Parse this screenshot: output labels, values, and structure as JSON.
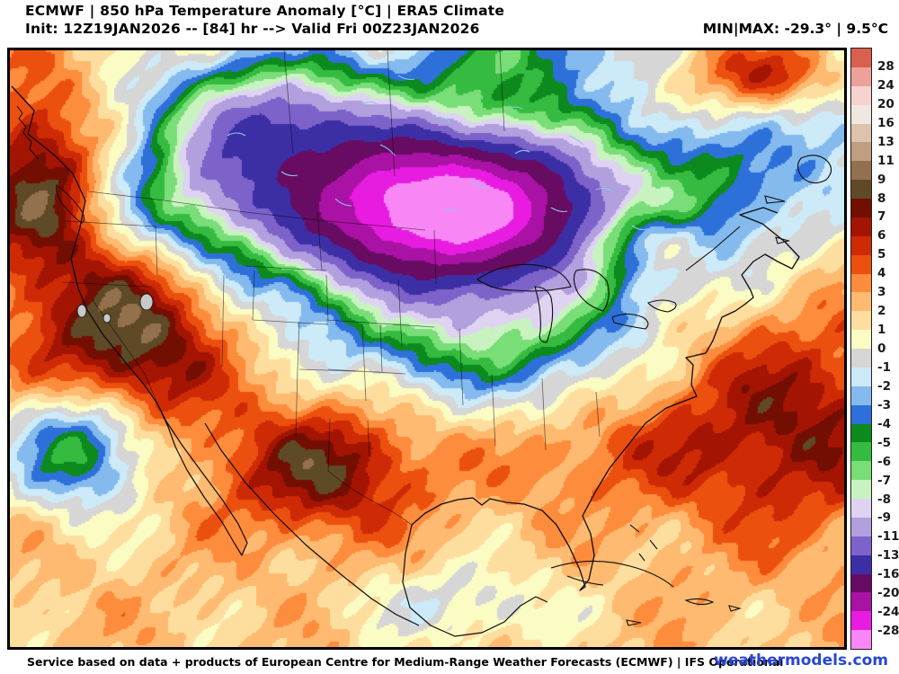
{
  "header": {
    "title_line1": "ECMWF | 850 hPa Temperature Anomaly [°C] | ERA5 Climate",
    "title_line2": "Init: 12Z19JAN2026 -- [84] hr --> Valid Fri 00Z23JAN2026",
    "minmax_label": "MIN|MAX: -29.3° | 9.5°C"
  },
  "footer": {
    "attribution": "Service based on data + products of European Centre for Medium-Range Weather Forecasts (ECMWF) | IFS Operational",
    "brand": "weathermodels.com",
    "brand_color": "#2946d2"
  },
  "colorbar": {
    "labels": [
      "28",
      "24",
      "20",
      "16",
      "13",
      "11",
      "9",
      "8",
      "7",
      "6",
      "5",
      "4",
      "3",
      "2",
      "1",
      "0",
      "-1",
      "-2",
      "-3",
      "-4",
      "-5",
      "-6",
      "-7",
      "-8",
      "-9",
      "-11",
      "-13",
      "-16",
      "-20",
      "-24",
      "-28"
    ]
  },
  "chart_data": {
    "type": "heatmap",
    "title": "ECMWF | 850 hPa Temperature Anomaly [°C] | ERA5 Climate",
    "region": "North America",
    "variable": "850 hPa temperature anomaly",
    "units": "°C",
    "min": -29.3,
    "max": 9.5,
    "background_anomaly": 2.2,
    "palette": {
      "thresholds": [
        28,
        24,
        20,
        16,
        13,
        11,
        9,
        8,
        7,
        6,
        5,
        4,
        3,
        2,
        1,
        0,
        -1,
        -2,
        -3,
        -4,
        -5,
        -6,
        -7,
        -8,
        -9,
        -11,
        -13,
        -16,
        -20,
        -24,
        -28
      ],
      "colors": [
        "#d95f4e",
        "#eca29a",
        "#f6d3cf",
        "#f0e8e0",
        "#dcc3ac",
        "#c09e80",
        "#93704e",
        "#5e4a26",
        "#730e02",
        "#a31402",
        "#ce2a06",
        "#ec500e",
        "#fd8c3c",
        "#fdba70",
        "#fede9e",
        "#fbfbc4",
        "#d6d6d6",
        "#cdeaf8",
        "#84baee",
        "#2e70d9",
        "#0c8a1e",
        "#35bc40",
        "#7ade78",
        "#c8f3c0",
        "#ded4f2",
        "#b19fde",
        "#7d62ca",
        "#3c2fa6",
        "#670c62",
        "#a912a4",
        "#e81ce0",
        "#f887f5"
      ]
    },
    "anomaly_centers": [
      {
        "name": "cold-core-inner",
        "x": 0.525,
        "y": 0.265,
        "rx": 0.155,
        "ry": 0.1,
        "amp": -21
      },
      {
        "name": "cold-core-broad",
        "x": 0.5,
        "y": 0.25,
        "rx": 0.26,
        "ry": 0.19,
        "amp": -15
      },
      {
        "name": "cold-west-lobe",
        "x": 0.3,
        "y": 0.12,
        "rx": 0.13,
        "ry": 0.11,
        "amp": -10
      },
      {
        "name": "cold-midwest-spread",
        "x": 0.58,
        "y": 0.47,
        "rx": 0.17,
        "ry": 0.12,
        "amp": -6.5
      },
      {
        "name": "cold-northeast",
        "x": 0.86,
        "y": 0.24,
        "rx": 0.13,
        "ry": 0.13,
        "amp": -4.5
      },
      {
        "name": "cold-hudson",
        "x": 0.62,
        "y": 0.0,
        "rx": 0.12,
        "ry": 0.07,
        "amp": -5
      },
      {
        "name": "cold-atlantic-ne",
        "x": 1.0,
        "y": 0.12,
        "rx": 0.08,
        "ry": 0.1,
        "amp": -4
      },
      {
        "name": "cold-baja-offshore",
        "x": 0.085,
        "y": 0.665,
        "rx": 0.085,
        "ry": 0.1,
        "amp": -8.5
      },
      {
        "name": "cold-bc-interior",
        "x": 0.22,
        "y": 0.26,
        "rx": 0.09,
        "ry": 0.09,
        "amp": -5
      },
      {
        "name": "cold-gulf-south",
        "x": 0.54,
        "y": 0.93,
        "rx": 0.12,
        "ry": 0.07,
        "amp": -3
      },
      {
        "name": "warm-west",
        "x": 0.145,
        "y": 0.475,
        "rx": 0.115,
        "ry": 0.16,
        "amp": 7.5
      },
      {
        "name": "warm-pnw-coast",
        "x": 0.035,
        "y": 0.22,
        "rx": 0.07,
        "ry": 0.16,
        "amp": 6.5
      },
      {
        "name": "warm-texas-mexico",
        "x": 0.375,
        "y": 0.7,
        "rx": 0.115,
        "ry": 0.105,
        "amp": 5.8
      },
      {
        "name": "warm-atlantic",
        "x": 0.935,
        "y": 0.625,
        "rx": 0.16,
        "ry": 0.18,
        "amp": 5.0
      },
      {
        "name": "warm-labrador",
        "x": 0.91,
        "y": 0.045,
        "rx": 0.1,
        "ry": 0.055,
        "amp": 4.5
      },
      {
        "name": "warm-quebec-patch",
        "x": 0.77,
        "y": 0.315,
        "rx": 0.06,
        "ry": 0.05,
        "amp": 5.0
      },
      {
        "name": "warm-southeast",
        "x": 0.7,
        "y": 0.68,
        "rx": 0.14,
        "ry": 0.08,
        "amp": 1.8
      }
    ]
  }
}
